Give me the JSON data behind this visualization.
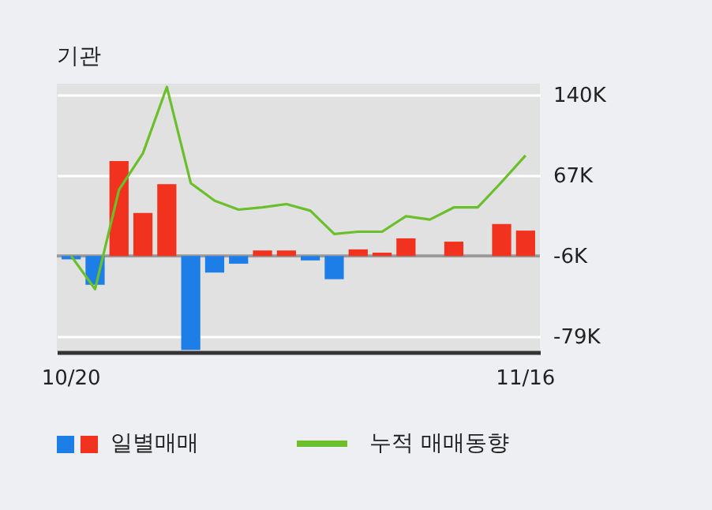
{
  "chart_data": {
    "type": "bar",
    "title": "기관",
    "categories": [
      "10/20",
      null,
      null,
      null,
      null,
      null,
      null,
      null,
      null,
      null,
      null,
      null,
      null,
      null,
      null,
      null,
      null,
      null,
      null,
      "11/16"
    ],
    "series": [
      {
        "name": "일별매매",
        "colors": [
          "#1e7ee8",
          "#1e7ee8",
          "#f0321e",
          "#f0321e",
          "#f0321e",
          "#1e7ee8",
          "#1e7ee8",
          "#1e7ee8",
          "#f0321e",
          "#f0321e",
          "#1e7ee8",
          "#1e7ee8",
          "#f0321e",
          "#f0321e",
          "#f0321e",
          "#f0321e",
          "#f0321e",
          "#f0321e",
          "#f0321e",
          "#f0321e"
        ],
        "values": [
          -3,
          -26,
          86,
          39,
          65,
          -85,
          -15,
          -7,
          5,
          5,
          -4,
          -21,
          6,
          3,
          16,
          null,
          13,
          null,
          29,
          23
        ],
        "base": [
          -6,
          -6,
          -6,
          -6,
          -6,
          -6,
          -6,
          -6,
          -6,
          -6,
          -6,
          -6,
          -6,
          -6,
          -6,
          null,
          -6,
          null,
          -6,
          -6
        ]
      },
      {
        "name": "누적 매매동향",
        "type": "line",
        "color": "#6abf2a",
        "values": [
          -6,
          -36,
          54,
          87,
          147,
          60,
          44,
          36,
          38,
          41,
          35,
          14,
          16,
          16,
          30,
          27,
          38,
          38,
          61,
          85
        ]
      }
    ],
    "ylim": [
      -93,
      150
    ],
    "yticks": [
      {
        "value": -79,
        "label": "-79K"
      },
      {
        "value": -6,
        "label": "-6K"
      },
      {
        "value": 67,
        "label": "67K"
      },
      {
        "value": 140,
        "label": "140K"
      }
    ],
    "ref_lines": [
      {
        "axis": "y",
        "value": -6,
        "color": "#999999"
      }
    ],
    "grid": "y",
    "legend": "bottom",
    "marker": "none",
    "line_style": "solid"
  }
}
